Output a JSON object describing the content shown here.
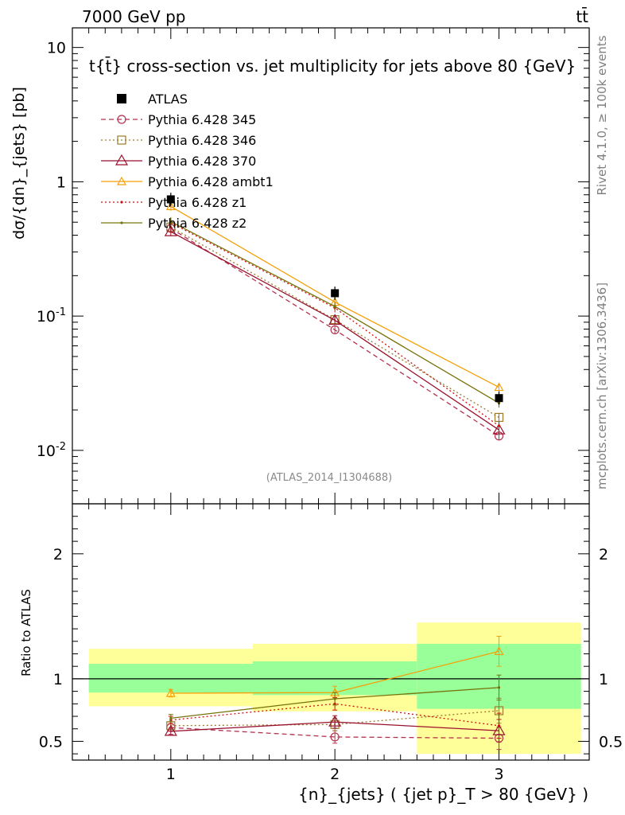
{
  "header": {
    "energy_label": "7000 GeV pp",
    "process_label": "tt̄"
  },
  "side_labels": {
    "rivet": "Rivet 4.1.0, ≥ 100k events",
    "mcplots": "mcplots.cern.ch [arXiv:1306.3436]"
  },
  "chart_data": {
    "type": "line",
    "title": "t{t̄} cross-section vs. jet multiplicity for jets above 80 {GeV}",
    "analysis_label": "(ATLAS_2014_I1304688)",
    "xlabel": "{n}_{jets} ( {jet p}_T > 80 {GeV} )",
    "ylabel": "dσ/{dn}_{jets} [pb]",
    "ratio_ylabel": "Ratio to ATLAS",
    "xlim": [
      0.4,
      3.55
    ],
    "ylim": [
      0.004,
      14
    ],
    "ratio_ylim": [
      0.35,
      2.4
    ],
    "yscale": "log",
    "x_ticks": [
      1,
      2,
      3
    ],
    "x_tick_labels": [
      "1",
      "2",
      "3"
    ],
    "y_ticks": [
      10,
      1,
      0.1,
      0.01
    ],
    "y_tick_labels": [
      "10",
      "1",
      "10^-1",
      "10^-2"
    ],
    "ratio_y_ticks": [
      0.5,
      1,
      2
    ],
    "ratio_y_tick_labels": [
      "0.5",
      "1",
      "2"
    ],
    "bins": [
      [
        0.5,
        1.5
      ],
      [
        1.5,
        2.5
      ],
      [
        2.5,
        3.5
      ]
    ],
    "data": {
      "name": "ATLAS",
      "x": [
        1,
        2,
        3
      ],
      "values": [
        0.74,
        0.148,
        0.0245
      ],
      "band_inner": [
        [
          0.89,
          1.12
        ],
        [
          0.87,
          1.14
        ],
        [
          0.76,
          1.28
        ]
      ],
      "band_outer": [
        [
          0.78,
          1.24
        ],
        [
          0.74,
          1.28
        ],
        [
          0.4,
          1.45
        ]
      ]
    },
    "series": [
      {
        "name": "Pythia 6.428 345",
        "color": "#b5324f",
        "dash": "6,4",
        "marker": "circle",
        "values": [
          0.45,
          0.079,
          0.0128
        ],
        "ratio": [
          0.61,
          0.535,
          0.525
        ],
        "ratio_err": [
          0.03,
          0.05,
          0.09
        ]
      },
      {
        "name": "Pythia 6.428 346",
        "color": "#9c7a2c",
        "dash": "2,3",
        "marker": "square",
        "values": [
          0.46,
          0.094,
          0.0176
        ],
        "ratio": [
          0.625,
          0.635,
          0.745
        ],
        "ratio_err": [
          0.03,
          0.05,
          0.1
        ]
      },
      {
        "name": "Pythia 6.428 370",
        "color": "#99112d",
        "dash": "",
        "marker": "triangle",
        "values": [
          0.425,
          0.093,
          0.0142
        ],
        "ratio": [
          0.58,
          0.655,
          0.585
        ],
        "ratio_err": [
          0.025,
          0.05,
          0.09
        ]
      },
      {
        "name": "Pythia 6.428 ambt1",
        "color": "#f5a00a",
        "dash": "",
        "marker": "triangle-small",
        "values": [
          0.655,
          0.127,
          0.0295
        ],
        "ratio": [
          0.885,
          0.89,
          1.22
        ],
        "ratio_err": [
          0.03,
          0.05,
          0.12
        ]
      },
      {
        "name": "Pythia 6.428 z1",
        "color": "#d01010",
        "dash": "2,3",
        "marker": "dot",
        "values": [
          0.495,
          0.115,
          0.0152
        ],
        "ratio": [
          0.67,
          0.8,
          0.625
        ],
        "ratio_err": [
          0.03,
          0.05,
          0.1
        ]
      },
      {
        "name": "Pythia 6.428 z2",
        "color": "#76730a",
        "dash": "",
        "marker": "dot",
        "values": [
          0.505,
          0.118,
          0.0225
        ],
        "ratio": [
          0.685,
          0.84,
          0.93
        ],
        "ratio_err": [
          0.03,
          0.05,
          0.1
        ]
      }
    ]
  },
  "colors": {
    "band_inner": "#99ff99",
    "band_outer": "#ffff99",
    "data_marker": "#000000",
    "axis": "#000000",
    "side_text": "#7f7f7f",
    "analysis_text": "#8a8a8a"
  }
}
